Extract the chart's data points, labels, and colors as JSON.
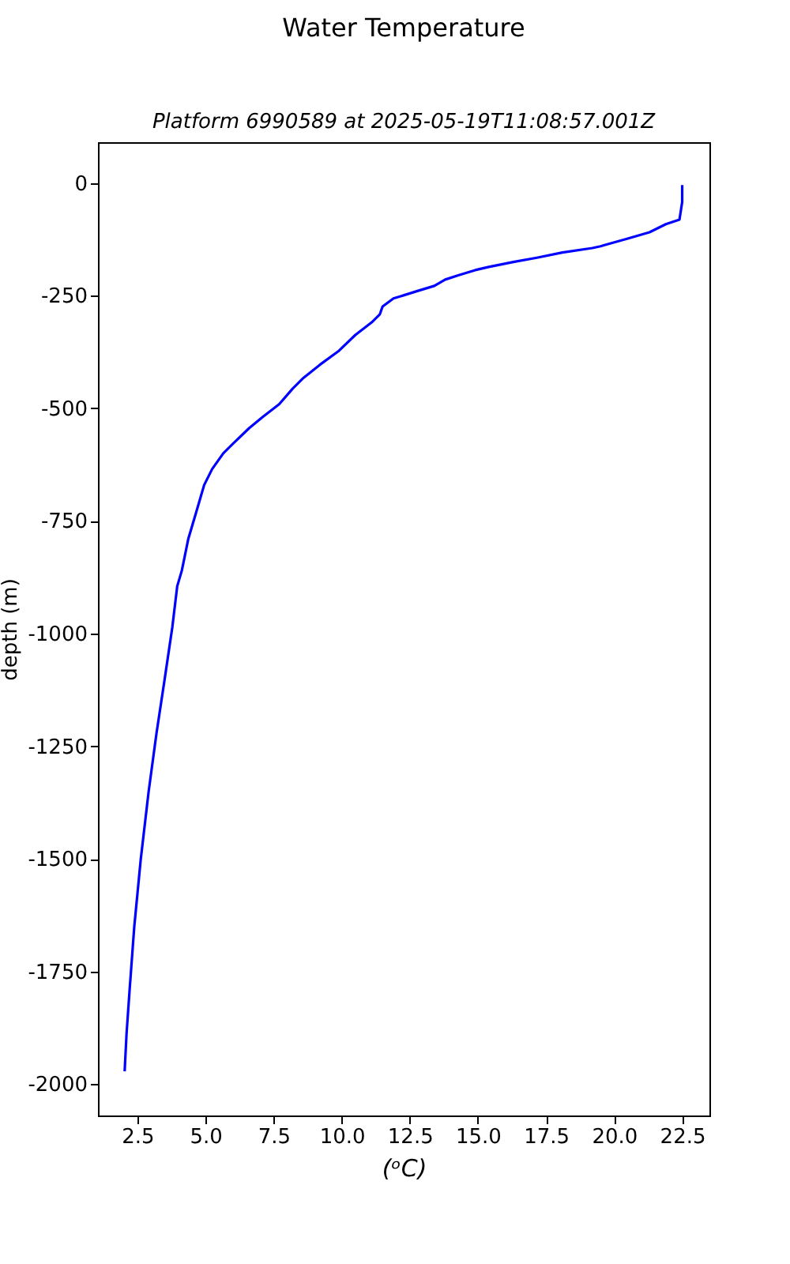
{
  "chart_data": {
    "type": "line",
    "title": "Water Temperature",
    "subtitle": "Platform 6990589 at 2025-05-19T11:08:57.001Z",
    "xlabel": "(ᵒC)",
    "ylabel": "depth (m)",
    "x": [
      22.5,
      22.5,
      22.4,
      21.9,
      21.3,
      20.5,
      19.5,
      19.2,
      18.1,
      17.2,
      16.3,
      15.4,
      14.9,
      14.3,
      13.8,
      13.4,
      12.8,
      11.9,
      11.5,
      11.4,
      11.1,
      10.5,
      9.9,
      9.2,
      8.6,
      8.2,
      7.7,
      7.1,
      6.6,
      6.0,
      5.65,
      5.24,
      4.95,
      4.66,
      4.37,
      4.13,
      3.96,
      3.78,
      3.49,
      3.2,
      2.91,
      2.62,
      2.38,
      2.21,
      2.1,
      2.03
    ],
    "series": [
      {
        "color": "#0000ff",
        "values": [
          -4,
          -42,
          -81,
          -91,
          -109,
          -123,
          -140,
          -144,
          -154,
          -165,
          -175,
          -186,
          -193,
          -204,
          -214,
          -228,
          -239,
          -256,
          -274,
          -291,
          -309,
          -337,
          -372,
          -403,
          -432,
          -456,
          -491,
          -519,
          -544,
          -579,
          -600,
          -635,
          -670,
          -730,
          -789,
          -860,
          -895,
          -986,
          -1105,
          -1221,
          -1351,
          -1502,
          -1653,
          -1793,
          -1888,
          -1972
        ]
      }
    ],
    "xlim": [
      1.05,
      23.5
    ],
    "ylim": [
      -2070,
      91
    ],
    "xticks": [
      2.5,
      {
        "value": 5,
        "label": "5.0"
      },
      7.5,
      {
        "value": 10,
        "label": "10.0"
      },
      12.5,
      {
        "value": 15,
        "label": "15.0"
      },
      17.5,
      {
        "value": 20,
        "label": "20.0"
      },
      22.5
    ],
    "yticks": [
      0,
      -250,
      -500,
      -750,
      -1000,
      -1250,
      -1500,
      -1750,
      -2000
    ],
    "grid": false,
    "line_style": "solid",
    "marker": "none"
  }
}
